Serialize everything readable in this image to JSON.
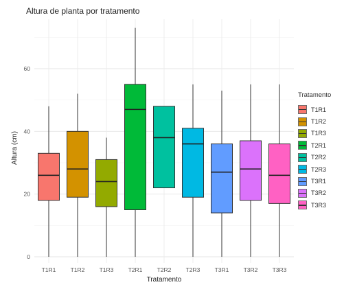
{
  "chart_data": {
    "type": "boxplot",
    "title": "Altura de planta por tratamento",
    "xlabel": "Tratamento",
    "ylabel": "Altura (cm)",
    "ylim": [
      0,
      72
    ],
    "yticks": [
      0,
      20,
      40,
      60
    ],
    "grid": true,
    "legend": {
      "title": "Tratamento",
      "position": "right",
      "entries": [
        "T1R1",
        "T1R2",
        "T1R3",
        "T2R1",
        "T2R2",
        "T2R3",
        "T3R1",
        "T3R2",
        "T3R3"
      ]
    },
    "categories": [
      "T1R1",
      "T1R2",
      "T1R3",
      "T2R1",
      "T2R2",
      "T2R3",
      "T3R1",
      "T3R2",
      "T3R3"
    ],
    "colors": [
      "#F8766D",
      "#D39200",
      "#93AA00",
      "#00BA38",
      "#00C19F",
      "#00B9E3",
      "#619CFF",
      "#DB72FB",
      "#FF61C3"
    ],
    "boxes": [
      {
        "min": 0,
        "q1": 18,
        "median": 26,
        "q3": 33,
        "max": 48
      },
      {
        "min": 0,
        "q1": 19,
        "median": 28,
        "q3": 40,
        "max": 52
      },
      {
        "min": 0,
        "q1": 16,
        "median": 24,
        "q3": 31,
        "max": 38
      },
      {
        "min": 0,
        "q1": 15,
        "median": 47,
        "q3": 55,
        "max": 73
      },
      {
        "min": 22,
        "q1": 22,
        "median": 38,
        "q3": 48,
        "max": 48
      },
      {
        "min": 0,
        "q1": 19,
        "median": 36,
        "q3": 41,
        "max": 55
      },
      {
        "min": 0,
        "q1": 14,
        "median": 27,
        "q3": 36,
        "max": 53
      },
      {
        "min": 0,
        "q1": 18,
        "median": 28,
        "q3": 37,
        "max": 55
      },
      {
        "min": 0,
        "q1": 17,
        "median": 26,
        "q3": 36,
        "max": 55
      }
    ]
  }
}
